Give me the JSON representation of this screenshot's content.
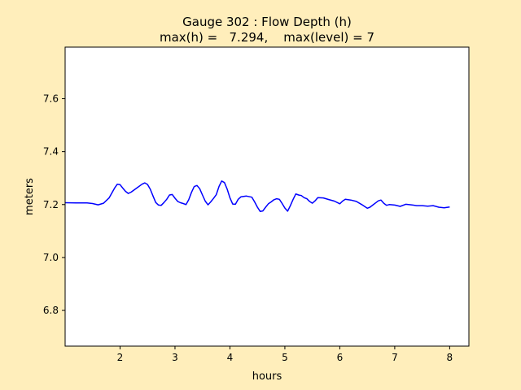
{
  "chart_data": {
    "type": "line",
    "title_line1": "Gauge 302 : Flow Depth (h)",
    "title_line2": "max(h) =   7.294,    max(level) = 7",
    "xlabel": "hours",
    "ylabel": "meters",
    "xlim": [
      1.0,
      8.35
    ],
    "ylim": [
      6.665,
      7.795
    ],
    "x_ticks": [
      2,
      3,
      4,
      5,
      6,
      7,
      8
    ],
    "x_tick_labels": [
      "2",
      "3",
      "4",
      "5",
      "6",
      "7",
      "8"
    ],
    "y_ticks": [
      6.8,
      7.0,
      7.2,
      7.4,
      7.6
    ],
    "y_tick_labels": [
      "6.8",
      "7.0",
      "7.2",
      "7.4",
      "7.6"
    ],
    "grid": false,
    "series": [
      {
        "color": "#0000ff",
        "x": [
          1.0,
          1.2,
          1.4,
          1.5,
          1.6,
          1.7,
          1.8,
          1.9,
          1.95,
          2.0,
          2.05,
          2.1,
          2.15,
          2.2,
          2.3,
          2.4,
          2.45,
          2.5,
          2.55,
          2.6,
          2.65,
          2.7,
          2.75,
          2.8,
          2.85,
          2.9,
          2.95,
          3.0,
          3.05,
          3.1,
          3.15,
          3.2,
          3.25,
          3.3,
          3.35,
          3.4,
          3.45,
          3.5,
          3.55,
          3.6,
          3.65,
          3.7,
          3.75,
          3.8,
          3.85,
          3.9,
          3.95,
          4.0,
          4.05,
          4.1,
          4.15,
          4.2,
          4.3,
          4.4,
          4.45,
          4.5,
          4.55,
          4.6,
          4.65,
          4.7,
          4.75,
          4.8,
          4.85,
          4.9,
          4.95,
          5.0,
          5.05,
          5.1,
          5.15,
          5.2,
          5.25,
          5.3,
          5.35,
          5.4,
          5.45,
          5.5,
          5.55,
          5.6,
          5.7,
          5.8,
          5.9,
          6.0,
          6.05,
          6.1,
          6.2,
          6.3,
          6.4,
          6.5,
          6.55,
          6.6,
          6.65,
          6.7,
          6.75,
          6.8,
          6.85,
          6.9,
          7.0,
          7.1,
          7.2,
          7.3,
          7.4,
          7.5,
          7.6,
          7.7,
          7.8,
          7.9,
          8.0
        ],
        "y": [
          7.207,
          7.206,
          7.206,
          7.204,
          7.199,
          7.205,
          7.225,
          7.262,
          7.277,
          7.275,
          7.262,
          7.25,
          7.242,
          7.247,
          7.262,
          7.277,
          7.282,
          7.276,
          7.258,
          7.232,
          7.208,
          7.198,
          7.197,
          7.208,
          7.22,
          7.236,
          7.238,
          7.224,
          7.212,
          7.207,
          7.204,
          7.2,
          7.218,
          7.246,
          7.268,
          7.272,
          7.26,
          7.236,
          7.213,
          7.199,
          7.21,
          7.223,
          7.237,
          7.268,
          7.289,
          7.283,
          7.258,
          7.226,
          7.202,
          7.201,
          7.22,
          7.229,
          7.232,
          7.228,
          7.21,
          7.19,
          7.174,
          7.176,
          7.19,
          7.203,
          7.21,
          7.218,
          7.222,
          7.22,
          7.204,
          7.187,
          7.175,
          7.196,
          7.22,
          7.24,
          7.236,
          7.234,
          7.226,
          7.222,
          7.212,
          7.205,
          7.214,
          7.226,
          7.225,
          7.219,
          7.213,
          7.203,
          7.213,
          7.22,
          7.217,
          7.212,
          7.2,
          7.186,
          7.19,
          7.198,
          7.206,
          7.214,
          7.217,
          7.205,
          7.197,
          7.2,
          7.198,
          7.193,
          7.201,
          7.199,
          7.196,
          7.196,
          7.194,
          7.196,
          7.19,
          7.188,
          7.191
        ]
      }
    ]
  }
}
